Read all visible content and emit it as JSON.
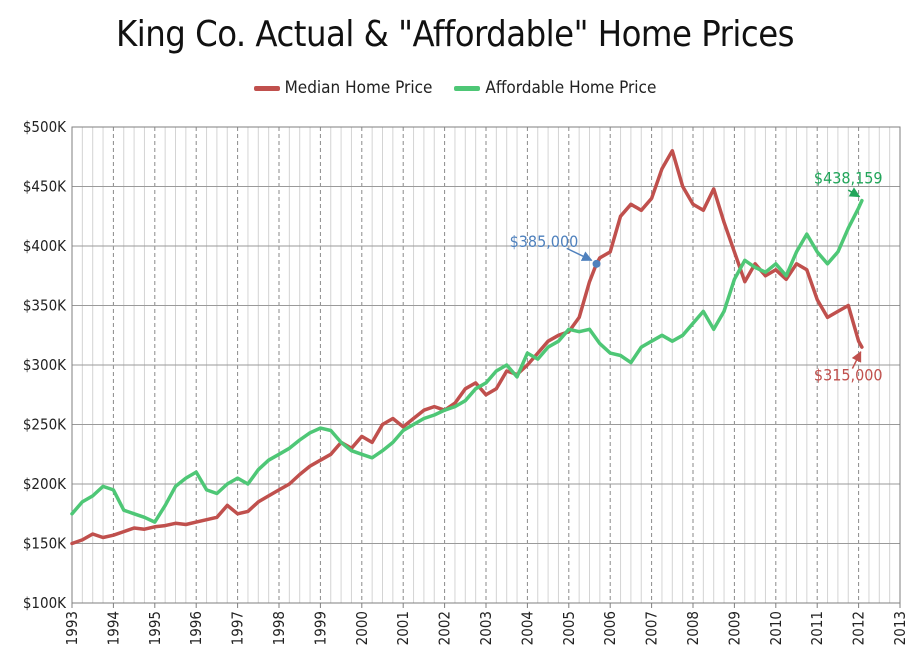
{
  "chart_data": {
    "type": "line",
    "title": "King Co. Actual & \"Affordable\" Home Prices",
    "xlabel": "",
    "ylabel": "",
    "xlim": [
      1993,
      2013
    ],
    "ylim": [
      100000,
      500000
    ],
    "x_ticks": [
      "1993",
      "1994",
      "1995",
      "1996",
      "1997",
      "1998",
      "1999",
      "2000",
      "2001",
      "2002",
      "2003",
      "2004",
      "2005",
      "2006",
      "2007",
      "2008",
      "2009",
      "2010",
      "2011",
      "2012",
      "2013"
    ],
    "y_ticks": [
      {
        "value": 100000,
        "label": "$100K"
      },
      {
        "value": 150000,
        "label": "$150K"
      },
      {
        "value": 200000,
        "label": "$200K"
      },
      {
        "value": 250000,
        "label": "$250K"
      },
      {
        "value": 300000,
        "label": "$300K"
      },
      {
        "value": 350000,
        "label": "$350K"
      },
      {
        "value": 400000,
        "label": "$400K"
      },
      {
        "value": 450000,
        "label": "$450K"
      },
      {
        "value": 500000,
        "label": "$500K"
      }
    ],
    "grid": "both",
    "legend_position": "top",
    "series": [
      {
        "name": "Median Home Price",
        "color": "#c0504d",
        "points": [
          [
            1993.0,
            150000
          ],
          [
            1993.25,
            153000
          ],
          [
            1993.5,
            158000
          ],
          [
            1993.75,
            155000
          ],
          [
            1994.0,
            157000
          ],
          [
            1994.25,
            160000
          ],
          [
            1994.5,
            163000
          ],
          [
            1994.75,
            162000
          ],
          [
            1995.0,
            164000
          ],
          [
            1995.25,
            165000
          ],
          [
            1995.5,
            167000
          ],
          [
            1995.75,
            166000
          ],
          [
            1996.0,
            168000
          ],
          [
            1996.25,
            170000
          ],
          [
            1996.5,
            172000
          ],
          [
            1996.75,
            182000
          ],
          [
            1997.0,
            175000
          ],
          [
            1997.25,
            177000
          ],
          [
            1997.5,
            185000
          ],
          [
            1997.75,
            190000
          ],
          [
            1998.0,
            195000
          ],
          [
            1998.25,
            200000
          ],
          [
            1998.5,
            208000
          ],
          [
            1998.75,
            215000
          ],
          [
            1999.0,
            220000
          ],
          [
            1999.25,
            225000
          ],
          [
            1999.5,
            235000
          ],
          [
            1999.75,
            230000
          ],
          [
            2000.0,
            240000
          ],
          [
            2000.25,
            235000
          ],
          [
            2000.5,
            250000
          ],
          [
            2000.75,
            255000
          ],
          [
            2001.0,
            248000
          ],
          [
            2001.25,
            255000
          ],
          [
            2001.5,
            262000
          ],
          [
            2001.75,
            265000
          ],
          [
            2002.0,
            262000
          ],
          [
            2002.25,
            268000
          ],
          [
            2002.5,
            280000
          ],
          [
            2002.75,
            285000
          ],
          [
            2003.0,
            275000
          ],
          [
            2003.25,
            280000
          ],
          [
            2003.5,
            295000
          ],
          [
            2003.75,
            292000
          ],
          [
            2004.0,
            300000
          ],
          [
            2004.25,
            310000
          ],
          [
            2004.5,
            320000
          ],
          [
            2004.75,
            325000
          ],
          [
            2005.0,
            328000
          ],
          [
            2005.25,
            340000
          ],
          [
            2005.5,
            370000
          ],
          [
            2005.67,
            385000
          ],
          [
            2005.75,
            390000
          ],
          [
            2006.0,
            395000
          ],
          [
            2006.25,
            425000
          ],
          [
            2006.5,
            435000
          ],
          [
            2006.75,
            430000
          ],
          [
            2007.0,
            440000
          ],
          [
            2007.25,
            465000
          ],
          [
            2007.5,
            480000
          ],
          [
            2007.75,
            450000
          ],
          [
            2008.0,
            435000
          ],
          [
            2008.25,
            430000
          ],
          [
            2008.5,
            448000
          ],
          [
            2008.75,
            420000
          ],
          [
            2009.0,
            395000
          ],
          [
            2009.25,
            370000
          ],
          [
            2009.5,
            385000
          ],
          [
            2009.75,
            375000
          ],
          [
            2010.0,
            380000
          ],
          [
            2010.25,
            372000
          ],
          [
            2010.5,
            385000
          ],
          [
            2010.75,
            380000
          ],
          [
            2011.0,
            355000
          ],
          [
            2011.25,
            340000
          ],
          [
            2011.5,
            345000
          ],
          [
            2011.75,
            350000
          ],
          [
            2012.0,
            320000
          ],
          [
            2012.08,
            315000
          ]
        ]
      },
      {
        "name": "Affordable Home Price",
        "color": "#4ec776",
        "points": [
          [
            1993.0,
            175000
          ],
          [
            1993.25,
            185000
          ],
          [
            1993.5,
            190000
          ],
          [
            1993.75,
            198000
          ],
          [
            1994.0,
            195000
          ],
          [
            1994.25,
            178000
          ],
          [
            1994.5,
            175000
          ],
          [
            1994.75,
            172000
          ],
          [
            1995.0,
            168000
          ],
          [
            1995.25,
            182000
          ],
          [
            1995.5,
            198000
          ],
          [
            1995.75,
            205000
          ],
          [
            1996.0,
            210000
          ],
          [
            1996.25,
            195000
          ],
          [
            1996.5,
            192000
          ],
          [
            1996.75,
            200000
          ],
          [
            1997.0,
            205000
          ],
          [
            1997.25,
            200000
          ],
          [
            1997.5,
            212000
          ],
          [
            1997.75,
            220000
          ],
          [
            1998.0,
            225000
          ],
          [
            1998.25,
            230000
          ],
          [
            1998.5,
            237000
          ],
          [
            1998.75,
            243000
          ],
          [
            1999.0,
            247000
          ],
          [
            1999.25,
            245000
          ],
          [
            1999.5,
            235000
          ],
          [
            1999.75,
            228000
          ],
          [
            2000.0,
            225000
          ],
          [
            2000.25,
            222000
          ],
          [
            2000.5,
            228000
          ],
          [
            2000.75,
            235000
          ],
          [
            2001.0,
            245000
          ],
          [
            2001.25,
            250000
          ],
          [
            2001.5,
            255000
          ],
          [
            2001.75,
            258000
          ],
          [
            2002.0,
            262000
          ],
          [
            2002.25,
            265000
          ],
          [
            2002.5,
            270000
          ],
          [
            2002.75,
            280000
          ],
          [
            2003.0,
            285000
          ],
          [
            2003.25,
            295000
          ],
          [
            2003.5,
            300000
          ],
          [
            2003.75,
            290000
          ],
          [
            2004.0,
            310000
          ],
          [
            2004.25,
            305000
          ],
          [
            2004.5,
            315000
          ],
          [
            2004.75,
            320000
          ],
          [
            2005.0,
            330000
          ],
          [
            2005.25,
            328000
          ],
          [
            2005.5,
            330000
          ],
          [
            2005.75,
            318000
          ],
          [
            2006.0,
            310000
          ],
          [
            2006.25,
            308000
          ],
          [
            2006.5,
            302000
          ],
          [
            2006.75,
            315000
          ],
          [
            2007.0,
            320000
          ],
          [
            2007.25,
            325000
          ],
          [
            2007.5,
            320000
          ],
          [
            2007.75,
            325000
          ],
          [
            2008.0,
            335000
          ],
          [
            2008.25,
            345000
          ],
          [
            2008.5,
            330000
          ],
          [
            2008.75,
            345000
          ],
          [
            2009.0,
            372000
          ],
          [
            2009.25,
            388000
          ],
          [
            2009.5,
            382000
          ],
          [
            2009.75,
            378000
          ],
          [
            2010.0,
            385000
          ],
          [
            2010.25,
            375000
          ],
          [
            2010.5,
            395000
          ],
          [
            2010.75,
            410000
          ],
          [
            2011.0,
            395000
          ],
          [
            2011.25,
            385000
          ],
          [
            2011.5,
            395000
          ],
          [
            2011.75,
            415000
          ],
          [
            2012.0,
            432000
          ],
          [
            2012.08,
            438159
          ]
        ]
      }
    ],
    "annotations": [
      {
        "text": "$385,000",
        "x": 2005.67,
        "y": 385000,
        "color": "#4f81bd",
        "marker": true
      },
      {
        "text": "$438,159",
        "x": 2012.08,
        "y": 438159,
        "color": "#22a55a",
        "marker": false
      },
      {
        "text": "$315,000",
        "x": 2012.08,
        "y": 315000,
        "color": "#c0504d",
        "marker": false
      }
    ]
  }
}
